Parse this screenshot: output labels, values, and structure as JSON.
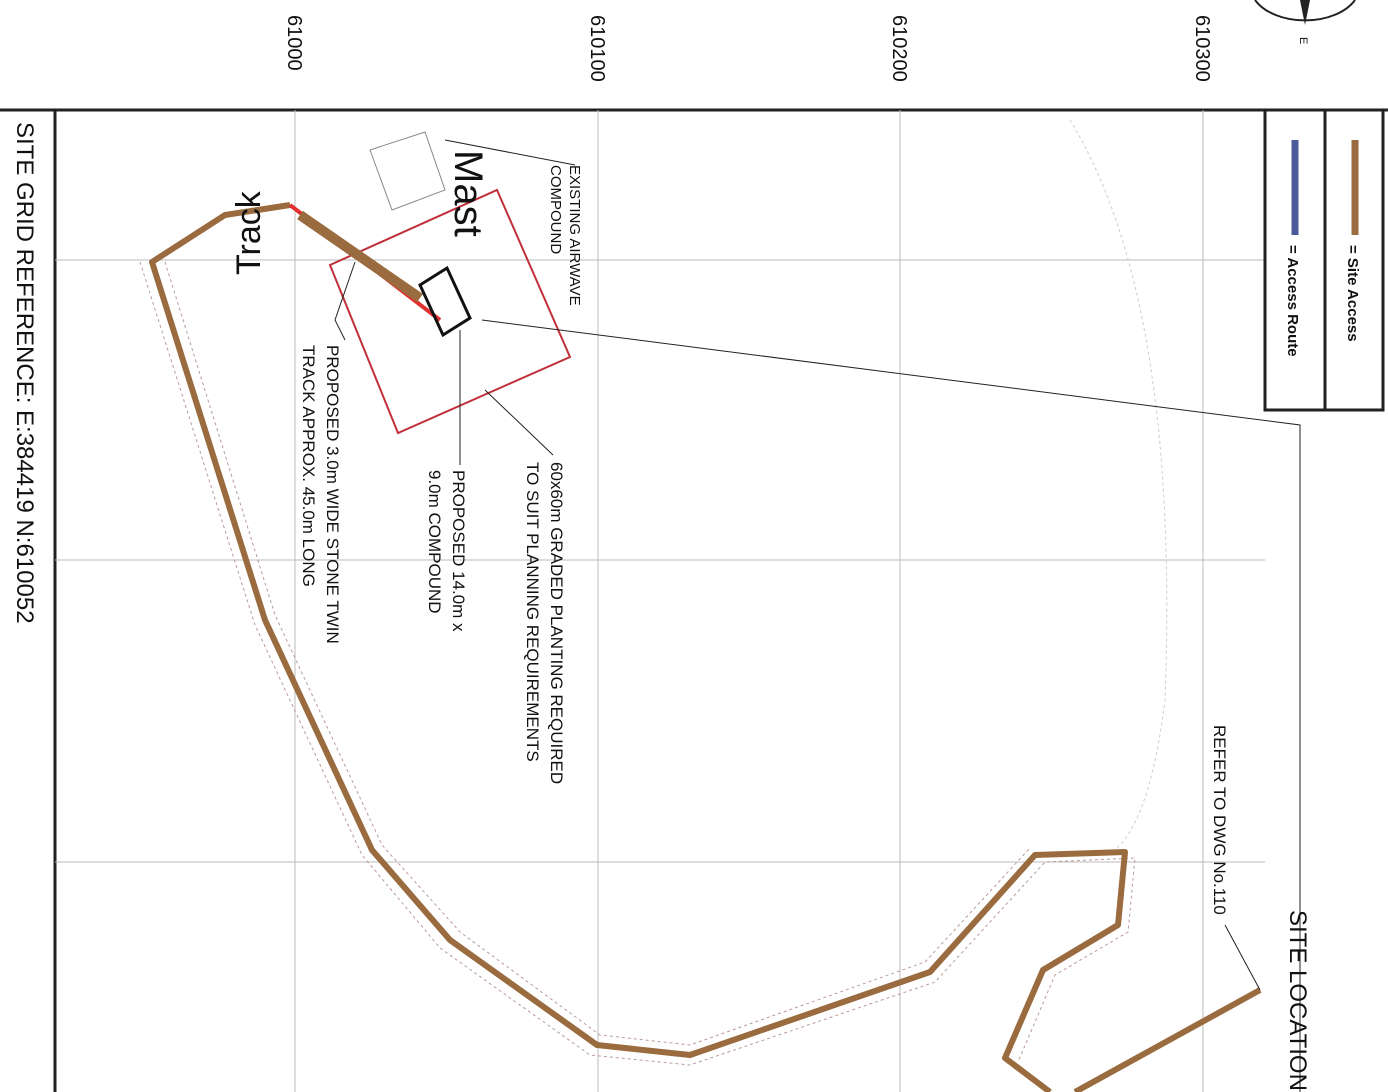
{
  "grid_labels": [
    "61000",
    "610100",
    "610200",
    "610300"
  ],
  "compass": {
    "label": "E"
  },
  "legend": {
    "items": [
      {
        "label": "= Site Access",
        "color": "#9a6b3e"
      },
      {
        "label": "= Access Route",
        "color": "#4a5a9a"
      }
    ]
  },
  "annotations": {
    "site_grid_reference": "SITE GRID REFERENCE:  E:384419  N:610052",
    "existing_compound": [
      "EXISTING AIRWAVE",
      "COMPOUND"
    ],
    "mast": "Mast",
    "track": "Track",
    "planting": [
      "60x60m GRADED PLANTING REQUIRED",
      "TO SUIT PLANNING REQUIREMENTS"
    ],
    "proposed_compound": [
      "PROPOSED 14.0m x",
      "9.0m COMPOUND"
    ],
    "proposed_track": [
      "PROPOSED 3.0m WIDE STONE TWIN",
      "TRACK APPROX. 45.0m LONG"
    ],
    "refer": "REFER TO DWG No.110",
    "site_location": "SITE LOCATION"
  }
}
